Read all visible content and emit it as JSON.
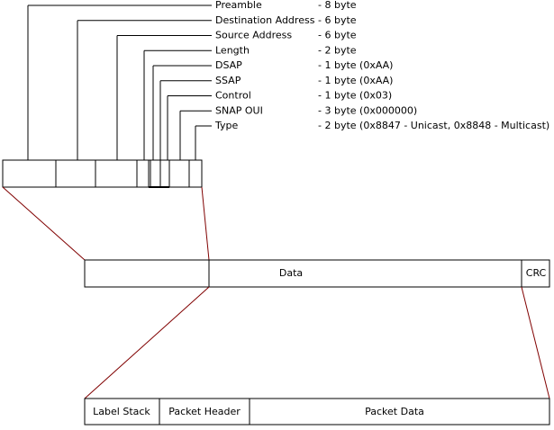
{
  "fields": [
    {
      "name": "Preamble",
      "size": "- 8 byte"
    },
    {
      "name": "Destination Address",
      "size": "- 6 byte"
    },
    {
      "name": "Source Address",
      "size": "- 6 byte"
    },
    {
      "name": "Length",
      "size": "- 2 byte"
    },
    {
      "name": "DSAP",
      "size": "- 1 byte (0xAA)"
    },
    {
      "name": "SSAP",
      "size": "- 1 byte (0xAA)"
    },
    {
      "name": "Control",
      "size": "- 1 byte (0x03)"
    },
    {
      "name": "SNAP OUI",
      "size": "- 3 byte (0x000000)"
    },
    {
      "name": "Type",
      "size": "- 2 byte (0x8847 - Unicast, 0x8848 - Multicast)"
    }
  ],
  "frame": {
    "data": "Data",
    "crc": "CRC"
  },
  "payload": {
    "label_stack": "Label Stack",
    "packet_header": "Packet Header",
    "packet_data": "Packet Data"
  }
}
